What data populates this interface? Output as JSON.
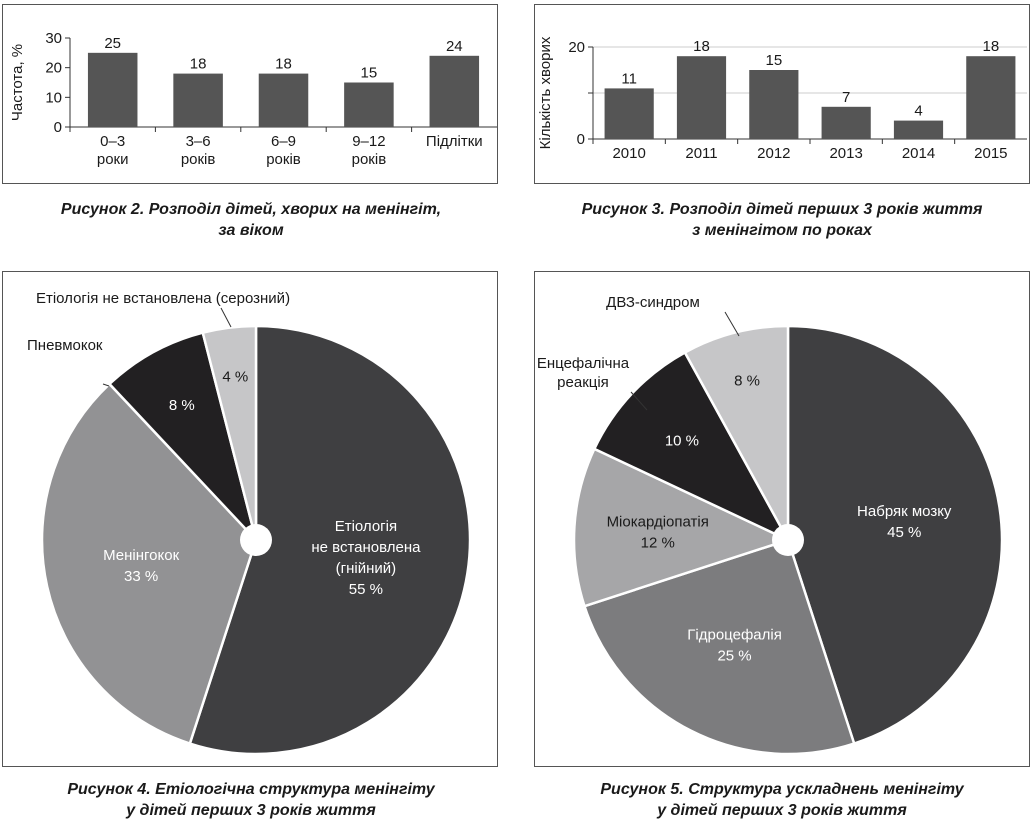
{
  "colors": {
    "bar": "#555555",
    "axis": "#333333",
    "grid": "#cccccc",
    "pie_dark": "#3f3f41",
    "pie_mid": "#929294",
    "pie_black": "#222022",
    "pie_light": "#c6c6c8",
    "pie_mid2": "#7c7c7e",
    "pie_mid3": "#a6a6a8"
  },
  "figures": {
    "fig2": {
      "caption_line1": "Рисунок 2.  Розподіл дітей, хворих на менінгіт,",
      "caption_line2": "за віком"
    },
    "fig3": {
      "caption_line1": "Рисунок 3.  Розподіл дітей перших 3 років життя",
      "caption_line2": "з менінгітом по роках"
    },
    "fig4": {
      "caption_line1": "Рисунок 4.  Етіологічна структура менінгіту",
      "caption_line2": "у дітей перших 3 років життя"
    },
    "fig5": {
      "caption_line1": "Рисунок 5.  Структура ускладнень менінгіту",
      "caption_line2": "у дітей перших 3 років життя"
    }
  },
  "chart_data": [
    {
      "type": "bar",
      "ylabel": "Частота, %",
      "ylim": [
        0,
        30
      ],
      "yticks": [
        0,
        10,
        20,
        30
      ],
      "grid": false,
      "categories": [
        [
          "0–3",
          "роки"
        ],
        [
          "3–6",
          "років"
        ],
        [
          "6–9",
          "років"
        ],
        [
          "9–12",
          "років"
        ],
        [
          "Підлітки"
        ]
      ],
      "values": [
        25,
        18,
        18,
        15,
        24
      ],
      "value_labels": [
        "25",
        "18",
        "18",
        "15",
        "24"
      ]
    },
    {
      "type": "bar",
      "ylabel": "Кількість хворих",
      "ylim": [
        0,
        20
      ],
      "yticks": [
        0,
        10,
        20
      ],
      "ytick_labels": [
        "0",
        "",
        "20"
      ],
      "grid": true,
      "categories": [
        "2010",
        "2011",
        "2012",
        "2013",
        "2014",
        "2015"
      ],
      "values": [
        11,
        18,
        15,
        7,
        4,
        18
      ],
      "value_labels": [
        "11",
        "18",
        "15",
        "7",
        "4",
        "18"
      ]
    },
    {
      "type": "pie",
      "slices": [
        {
          "name": [
            "Етіологія",
            "не встановлена",
            "(гнійний)"
          ],
          "value": 55,
          "label": "55 %",
          "color": "#3f3f41",
          "label_color": "#ffffff"
        },
        {
          "name": [
            "Менінгокок"
          ],
          "value": 33,
          "label": "33 %",
          "color": "#929294",
          "label_color": "#ffffff"
        },
        {
          "name": [
            "Пневмокок"
          ],
          "value": 8,
          "label": "8 %",
          "color": "#222022",
          "label_color": "#ffffff"
        },
        {
          "name": [
            "Етіологія не встановлена (серозний)"
          ],
          "value": 4,
          "label": "4 %",
          "color": "#c6c6c8",
          "label_color": "#1a1a1a"
        }
      ]
    },
    {
      "type": "pie",
      "slices": [
        {
          "name": [
            "Набряк мозку"
          ],
          "value": 45,
          "label": "45 %",
          "color": "#3f3f41",
          "label_color": "#ffffff"
        },
        {
          "name": [
            "Гідроцефалія"
          ],
          "value": 25,
          "label": "25 %",
          "color": "#7c7c7e",
          "label_color": "#ffffff"
        },
        {
          "name": [
            "Міокардіопатія"
          ],
          "value": 12,
          "label": "12 %",
          "color": "#a6a6a8",
          "label_color": "#1a1a1a"
        },
        {
          "name": [
            "Енцефалічна",
            "реакція"
          ],
          "value": 10,
          "label": "10 %",
          "color": "#222022",
          "label_color": "#ffffff"
        },
        {
          "name": [
            "ДВЗ-синдром"
          ],
          "value": 8,
          "label": "8 %",
          "color": "#c6c6c8",
          "label_color": "#1a1a1a"
        }
      ]
    }
  ]
}
